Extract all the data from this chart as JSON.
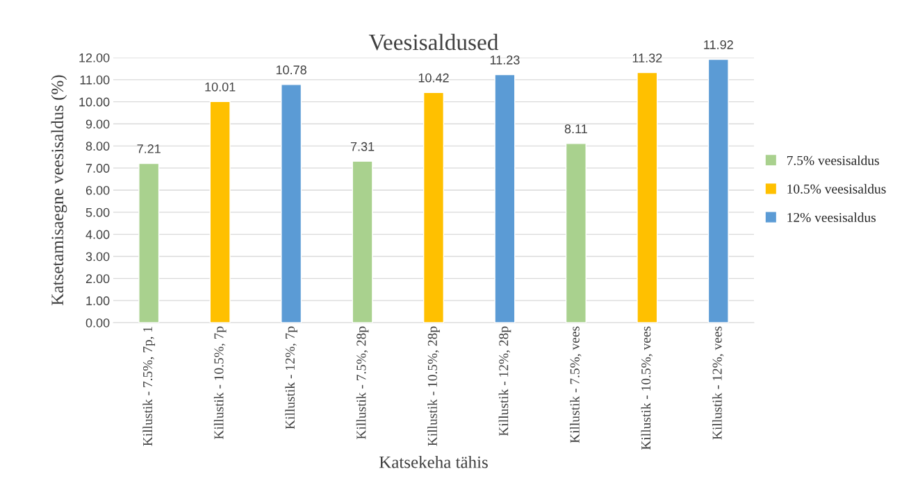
{
  "chart_data": {
    "type": "bar",
    "title": "Veesisaldused",
    "xlabel": "Katsekeha tähis",
    "ylabel": "Katsetamisaegne veesisaldus (%)",
    "categories": [
      "Killustik - 7.5%, 7p, 1",
      "Killustik - 10.5%, 7p",
      "Killustik - 12%, 7p",
      "Killustik - 7.5%, 28p",
      "Killustik - 10.5%, 28p",
      "Killustik - 12%, 28p",
      "Killustik - 7.5%, vees",
      "Killustik - 10.5%, vees",
      "Killustik - 12%, vees"
    ],
    "series": [
      {
        "name": "7.5% veesisaldus",
        "color": "#a9d18e",
        "values": [
          7.21,
          null,
          null,
          7.31,
          null,
          null,
          8.11,
          null,
          null
        ]
      },
      {
        "name": "10.5% veesisaldus",
        "color": "#ffc000",
        "values": [
          null,
          10.01,
          null,
          null,
          10.42,
          null,
          null,
          11.32,
          null
        ]
      },
      {
        "name": "12% veesisaldus",
        "color": "#5b9bd5",
        "values": [
          null,
          null,
          10.78,
          null,
          null,
          11.23,
          null,
          null,
          11.92
        ]
      }
    ],
    "ylim": [
      0,
      12
    ],
    "yticks": [
      {
        "value": 0,
        "label": "0.00"
      },
      {
        "value": 1,
        "label": "1.00"
      },
      {
        "value": 2,
        "label": "2.00"
      },
      {
        "value": 3,
        "label": "3.00"
      },
      {
        "value": 4,
        "label": "4.00"
      },
      {
        "value": 5,
        "label": "5.00"
      },
      {
        "value": 6,
        "label": "6.00"
      },
      {
        "value": 7,
        "label": "7.00"
      },
      {
        "value": 8,
        "label": "8.00"
      },
      {
        "value": 9,
        "label": "9.00"
      },
      {
        "value": 10,
        "label": "10.00"
      },
      {
        "value": 11,
        "label": "11.00"
      },
      {
        "value": 12,
        "label": "12.00"
      }
    ],
    "grid": "y",
    "legend": "right",
    "data_labels": true
  }
}
